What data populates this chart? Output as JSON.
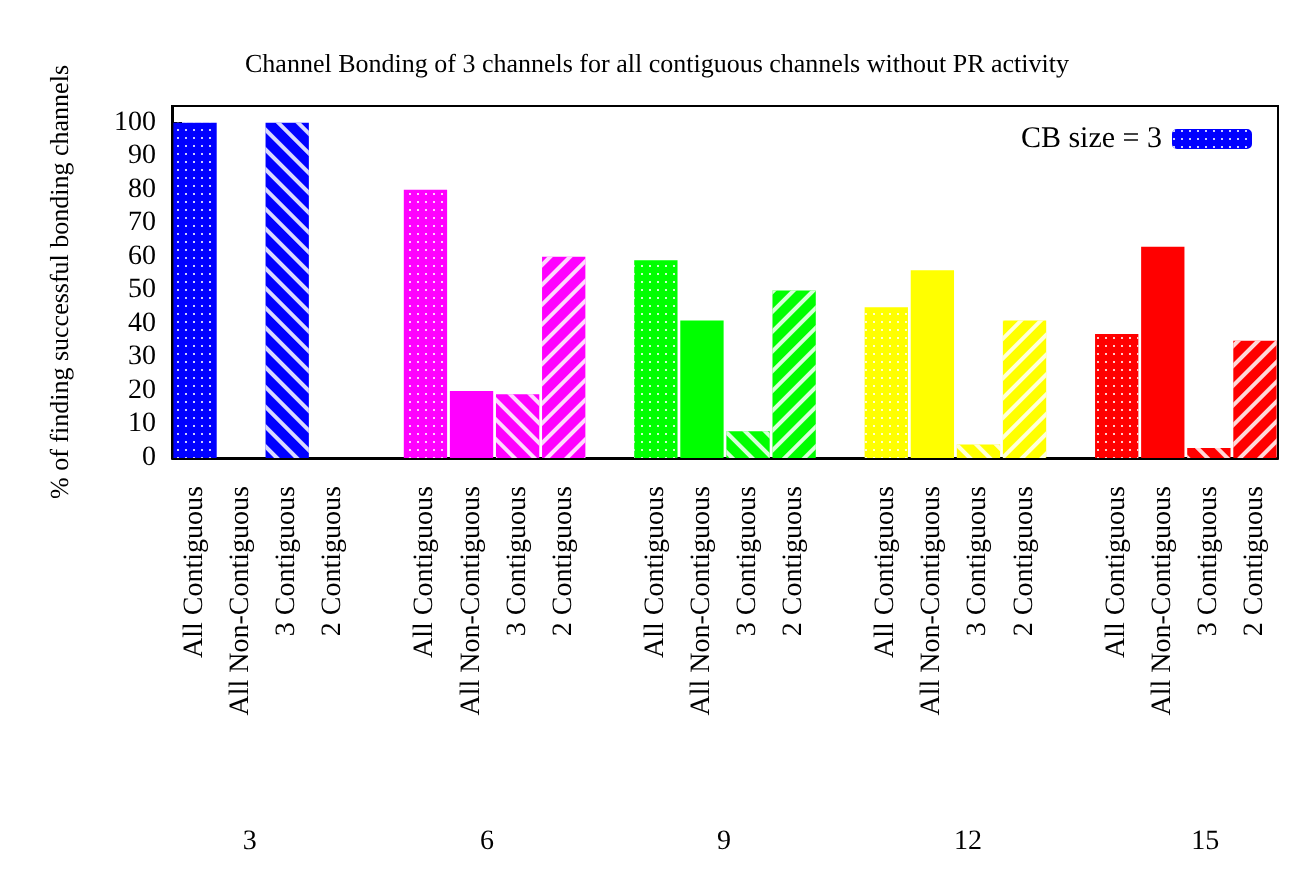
{
  "chart_data": {
    "type": "bar",
    "title": "Channel Bonding of 3 channels for all contiguous channels without PR activity",
    "ylabel": "% of finding successful bonding channels",
    "categories": [
      "All Contiguous",
      "All Non-Contiguous",
      "3 Contiguous",
      "2 Contiguous",
      null,
      "All Contiguous",
      "All Non-Contiguous",
      "3 Contiguous",
      "2 Contiguous",
      null,
      "All Contiguous",
      "All Non-Contiguous",
      "3 Contiguous",
      "2 Contiguous",
      null,
      "All Contiguous",
      "All Non-Contiguous",
      "3 Contiguous",
      "2 Contiguous",
      null,
      "All Contiguous",
      "All Non-Contiguous",
      "3 Contiguous",
      "2 Contiguous"
    ],
    "series": [
      {
        "name": "CB size = 3",
        "color": "#0000ff",
        "values": [
          100,
          0,
          100,
          0,
          null,
          80,
          20,
          19,
          60,
          null,
          59,
          41,
          8,
          50,
          null,
          45,
          56,
          4,
          41,
          null,
          37,
          63,
          3,
          35
        ],
        "colors": [
          "#0000ff",
          "#0000ff",
          "#0000ff",
          "#0000ff",
          "#ffffff",
          "#ff00ff",
          "#ff00ff",
          "#ff00ff",
          "#ff00ff",
          "#ffffff",
          "#00ff00",
          "#00ff00",
          "#00ff00",
          "#00ff00",
          "#ffffff",
          "#ffff00",
          "#ffff00",
          "#ffff00",
          "#ffff00",
          "#ffffff",
          "#ff0000",
          "#ff0000",
          "#ff0000",
          "#ff0000"
        ]
      }
    ],
    "annotations": [
      "3",
      "6",
      "9",
      "12",
      "15"
    ],
    "ylim": [
      0,
      105
    ],
    "yticks": [
      0,
      10,
      20,
      30,
      40,
      50,
      60,
      70,
      80,
      90,
      100
    ],
    "grid": false,
    "legend": "top right"
  }
}
